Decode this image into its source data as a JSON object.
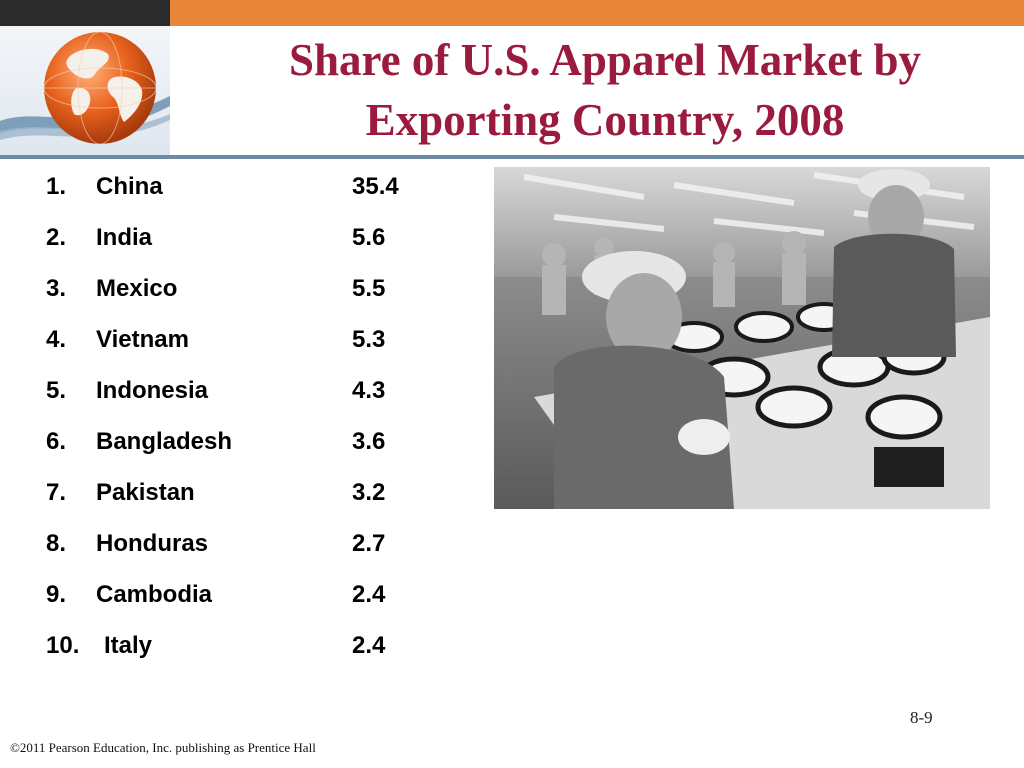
{
  "slide": {
    "title_line1": "Share of U.S. Apparel Market by",
    "title_line2": "Exporting Country, 2008",
    "page_number": "8-9",
    "footer": "©2011 Pearson Education, Inc. publishing as Prentice Hall"
  },
  "colors": {
    "title": "#9b1b3f",
    "top_bar_orange": "#e8873a",
    "top_bar_dark": "#2b2b2b",
    "divider": "#6d8aa6"
  },
  "icons": {
    "logo": "globe-icon"
  },
  "ranking": [
    {
      "rank": "1.",
      "country": "China",
      "value": "35.4"
    },
    {
      "rank": "2.",
      "country": "India",
      "value": "5.6"
    },
    {
      "rank": "3.",
      "country": "Mexico",
      "value": "5.5"
    },
    {
      "rank": "4.",
      "country": "Vietnam",
      "value": "5.3"
    },
    {
      "rank": "5.",
      "country": "Indonesia",
      "value": "4.3"
    },
    {
      "rank": "6.",
      "country": "Bangladesh",
      "value": "3.6"
    },
    {
      "rank": "7.",
      "country": "Pakistan",
      "value": "3.2"
    },
    {
      "rank": "8.",
      "country": "Honduras",
      "value": "2.7"
    },
    {
      "rank": "9.",
      "country": "Cambodia",
      "value": "2.4"
    },
    {
      "rank": "10.",
      "country": "Italy",
      "value": "2.4"
    }
  ]
}
